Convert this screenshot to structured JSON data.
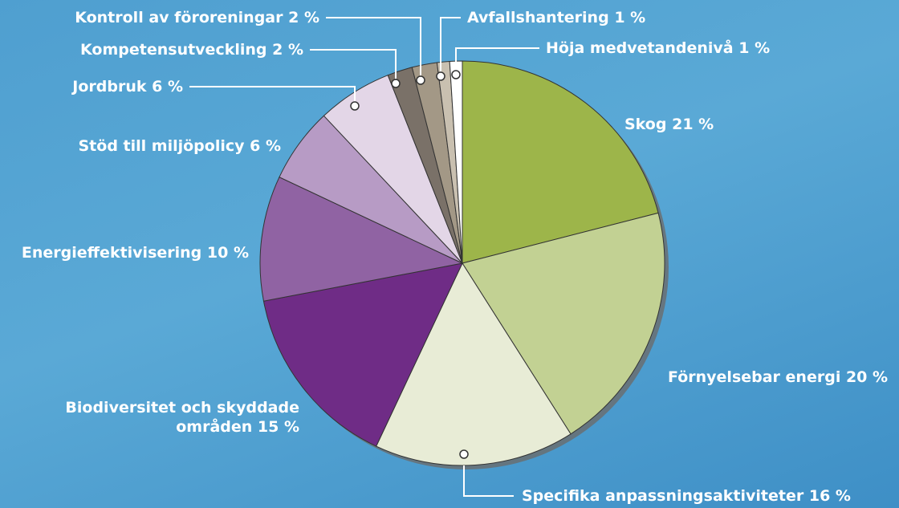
{
  "chart_data": {
    "type": "pie",
    "categories": [
      "Skog",
      "Förnyelsebar energi",
      "Specifika anpassningsaktiviteter",
      "Biodiversitet och skyddade områden",
      "Energieffektivisering",
      "Stöd till miljöpolicy",
      "Jordbruk",
      "Kompetensutveckling",
      "Kontroll av föroreningar",
      "Avfallshantering",
      "Höja medvetandenivå"
    ],
    "values": [
      21,
      20,
      16,
      15,
      10,
      6,
      6,
      2,
      2,
      1,
      1
    ],
    "value_labels": [
      "21 %",
      "20 %",
      "16 %",
      "15 %",
      "10 %",
      "6 %",
      "6 %",
      "2 %",
      "2 %",
      "1 %",
      "1 %"
    ],
    "colors": [
      "#9db54a",
      "#c2d193",
      "#e8ecd6",
      "#6f2c86",
      "#9063a3",
      "#b79bc5",
      "#e3d6e7",
      "#7a7168",
      "#a39886",
      "#c9c0b0",
      "#ffffff"
    ]
  }
}
